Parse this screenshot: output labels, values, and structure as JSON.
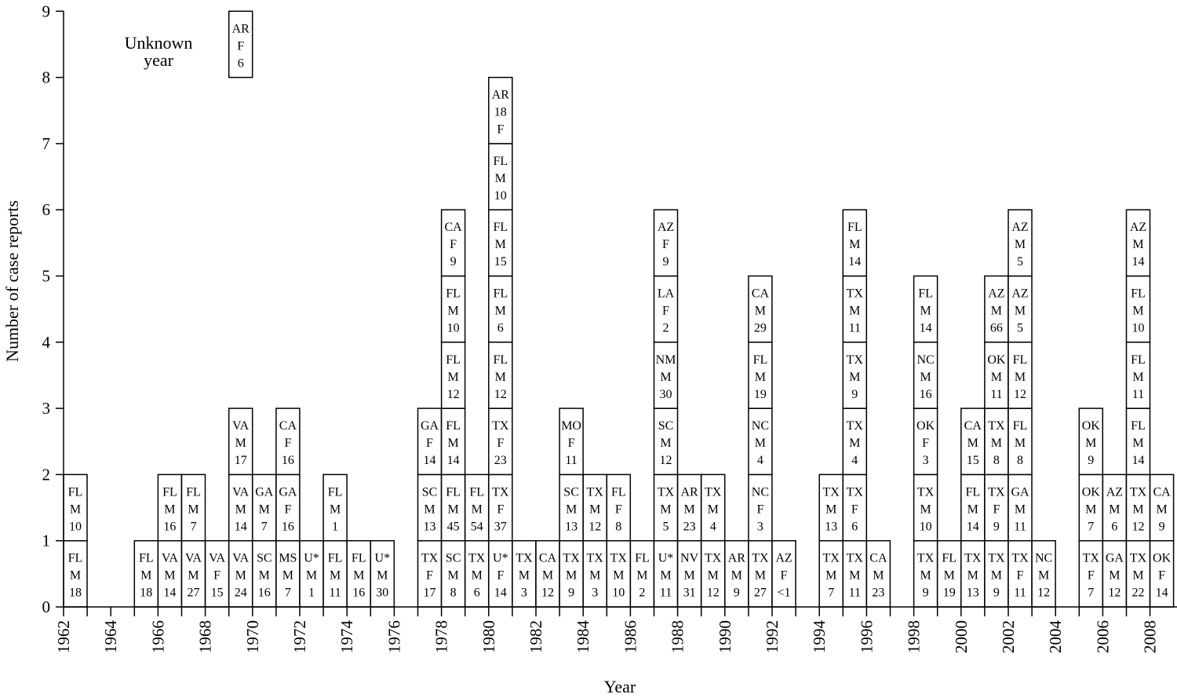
{
  "chart_data": {
    "type": "bar",
    "subtype": "stacked-case-boxes",
    "xlabel": "Year",
    "ylabel": "Number of case reports",
    "ylim": [
      0,
      9
    ],
    "yticks": [
      0,
      1,
      2,
      3,
      4,
      5,
      6,
      7,
      8,
      9
    ],
    "xlim": [
      1962,
      2008
    ],
    "xticks": [
      1962,
      1964,
      1966,
      1968,
      1970,
      1972,
      1974,
      1976,
      1978,
      1980,
      1982,
      1984,
      1986,
      1988,
      1990,
      1992,
      1994,
      1996,
      1998,
      2000,
      2002,
      2004,
      2006,
      2008
    ],
    "grid": false,
    "unknown_year": {
      "label": [
        "Unknown",
        "year"
      ],
      "cases": [
        [
          "AR",
          "F",
          "6"
        ]
      ]
    },
    "counts_by_year": [
      {
        "year": 1962,
        "count": 2
      },
      {
        "year": 1965,
        "count": 1
      },
      {
        "year": 1966,
        "count": 2
      },
      {
        "year": 1967,
        "count": 2
      },
      {
        "year": 1968,
        "count": 1
      },
      {
        "year": 1969,
        "count": 3
      },
      {
        "year": 1970,
        "count": 2
      },
      {
        "year": 1971,
        "count": 3
      },
      {
        "year": 1972,
        "count": 1
      },
      {
        "year": 1973,
        "count": 2
      },
      {
        "year": 1974,
        "count": 1
      },
      {
        "year": 1975,
        "count": 1
      },
      {
        "year": 1977,
        "count": 3
      },
      {
        "year": 1978,
        "count": 6
      },
      {
        "year": 1979,
        "count": 2
      },
      {
        "year": 1980,
        "count": 8
      },
      {
        "year": 1981,
        "count": 1
      },
      {
        "year": 1982,
        "count": 1
      },
      {
        "year": 1983,
        "count": 3
      },
      {
        "year": 1984,
        "count": 2
      },
      {
        "year": 1985,
        "count": 2
      },
      {
        "year": 1986,
        "count": 1
      },
      {
        "year": 1987,
        "count": 6
      },
      {
        "year": 1988,
        "count": 2
      },
      {
        "year": 1989,
        "count": 2
      },
      {
        "year": 1990,
        "count": 1
      },
      {
        "year": 1991,
        "count": 5
      },
      {
        "year": 1992,
        "count": 1
      },
      {
        "year": 1994,
        "count": 2
      },
      {
        "year": 1995,
        "count": 6
      },
      {
        "year": 1996,
        "count": 1
      },
      {
        "year": 1998,
        "count": 5
      },
      {
        "year": 1999,
        "count": 1
      },
      {
        "year": 2000,
        "count": 3
      },
      {
        "year": 2001,
        "count": 5
      },
      {
        "year": 2002,
        "count": 6
      },
      {
        "year": 2003,
        "count": 1
      },
      {
        "year": 2005,
        "count": 3
      },
      {
        "year": 2006,
        "count": 2
      },
      {
        "year": 2007,
        "count": 6
      },
      {
        "year": 2008,
        "count": 2
      }
    ],
    "columns": [
      {
        "year": 1962,
        "cases": [
          [
            "FL",
            "M",
            "18"
          ],
          [
            "FL",
            "M",
            "10"
          ]
        ]
      },
      {
        "year": 1965,
        "cases": [
          [
            "FL",
            "M",
            "18"
          ]
        ]
      },
      {
        "year": 1966,
        "cases": [
          [
            "VA",
            "M",
            "14"
          ],
          [
            "FL",
            "M",
            "16"
          ]
        ]
      },
      {
        "year": 1967,
        "cases": [
          [
            "VA",
            "M",
            "27"
          ],
          [
            "FL",
            "M",
            "7"
          ]
        ]
      },
      {
        "year": 1968,
        "cases": [
          [
            "VA",
            "F",
            "15"
          ]
        ]
      },
      {
        "year": 1969,
        "cases": [
          [
            "VA",
            "M",
            "24"
          ],
          [
            "VA",
            "M",
            "14"
          ],
          [
            "VA",
            "M",
            "17"
          ]
        ]
      },
      {
        "year": 1970,
        "cases": [
          [
            "SC",
            "M",
            "16"
          ],
          [
            "GA",
            "M",
            "7"
          ]
        ]
      },
      {
        "year": 1971,
        "cases": [
          [
            "MS",
            "M",
            "7"
          ],
          [
            "GA",
            "F",
            "16"
          ],
          [
            "CA",
            "F",
            "16"
          ]
        ]
      },
      {
        "year": 1972,
        "cases": [
          [
            "U*",
            "M",
            "1"
          ]
        ]
      },
      {
        "year": 1973,
        "cases": [
          [
            "FL",
            "M",
            "11"
          ],
          [
            "FL",
            "M",
            "1"
          ]
        ]
      },
      {
        "year": 1974,
        "cases": [
          [
            "FL",
            "M",
            "16"
          ]
        ]
      },
      {
        "year": 1975,
        "cases": [
          [
            "U*",
            "M",
            "30"
          ]
        ]
      },
      {
        "year": 1977,
        "cases": [
          [
            "TX",
            "F",
            "17"
          ],
          [
            "SC",
            "M",
            "13"
          ],
          [
            "GA",
            "F",
            "14"
          ]
        ]
      },
      {
        "year": 1978,
        "cases": [
          [
            "SC",
            "M",
            "8"
          ],
          [
            "FL",
            "M",
            "45"
          ],
          [
            "FL",
            "M",
            "14"
          ],
          [
            "FL",
            "M",
            "12"
          ],
          [
            "FL",
            "M",
            "10"
          ],
          [
            "CA",
            "F",
            "9"
          ]
        ]
      },
      {
        "year": 1979,
        "cases": [
          [
            "TX",
            "M",
            "6"
          ],
          [
            "FL",
            "M",
            "54"
          ]
        ]
      },
      {
        "year": 1980,
        "cases": [
          [
            "U*",
            "F",
            "14"
          ],
          [
            "TX",
            "F",
            "37"
          ],
          [
            "TX",
            "F",
            "23"
          ],
          [
            "FL",
            "M",
            "12"
          ],
          [
            "FL",
            "M",
            "6"
          ],
          [
            "FL",
            "M",
            "15"
          ],
          [
            "FL",
            "M",
            "10"
          ],
          [
            "AR",
            "18",
            "F"
          ]
        ]
      },
      {
        "year": 1981,
        "cases": [
          [
            "TX",
            "M",
            "3"
          ]
        ]
      },
      {
        "year": 1982,
        "cases": [
          [
            "CA",
            "M",
            "12"
          ]
        ]
      },
      {
        "year": 1983,
        "cases": [
          [
            "TX",
            "M",
            "9"
          ],
          [
            "SC",
            "M",
            "13"
          ],
          [
            "MO",
            "F",
            "11"
          ]
        ]
      },
      {
        "year": 1984,
        "cases": [
          [
            "TX",
            "M",
            "3"
          ],
          [
            "TX",
            "M",
            "12"
          ]
        ]
      },
      {
        "year": 1985,
        "cases": [
          [
            "TX",
            "M",
            "10"
          ],
          [
            "FL",
            "F",
            "8"
          ]
        ]
      },
      {
        "year": 1986,
        "cases": [
          [
            "FL",
            "M",
            "2"
          ]
        ]
      },
      {
        "year": 1987,
        "cases": [
          [
            "U*",
            "M",
            "11"
          ],
          [
            "TX",
            "M",
            "5"
          ],
          [
            "SC",
            "M",
            "12"
          ],
          [
            "NM",
            "M",
            "30"
          ],
          [
            "LA",
            "F",
            "2"
          ],
          [
            "AZ",
            "F",
            "9"
          ]
        ]
      },
      {
        "year": 1988,
        "cases": [
          [
            "NV",
            "M",
            "31"
          ],
          [
            "AR",
            "M",
            "23"
          ]
        ]
      },
      {
        "year": 1989,
        "cases": [
          [
            "TX",
            "M",
            "12"
          ],
          [
            "TX",
            "M",
            "4"
          ]
        ]
      },
      {
        "year": 1990,
        "cases": [
          [
            "AR",
            "M",
            "9"
          ]
        ]
      },
      {
        "year": 1991,
        "cases": [
          [
            "TX",
            "M",
            "27"
          ],
          [
            "NC",
            "F",
            "3"
          ],
          [
            "NC",
            "M",
            "4"
          ],
          [
            "FL",
            "M",
            "19"
          ],
          [
            "CA",
            "M",
            "29"
          ]
        ]
      },
      {
        "year": 1992,
        "cases": [
          [
            "AZ",
            "F",
            "<1"
          ]
        ]
      },
      {
        "year": 1994,
        "cases": [
          [
            "TX",
            "M",
            "7"
          ],
          [
            "TX",
            "M",
            "13"
          ]
        ]
      },
      {
        "year": 1995,
        "cases": [
          [
            "TX",
            "M",
            "11"
          ],
          [
            "TX",
            "F",
            "6"
          ],
          [
            "TX",
            "M",
            "4"
          ],
          [
            "TX",
            "M",
            "9"
          ],
          [
            "TX",
            "M",
            "11"
          ],
          [
            "FL",
            "M",
            "14"
          ]
        ]
      },
      {
        "year": 1996,
        "cases": [
          [
            "CA",
            "M",
            "23"
          ]
        ]
      },
      {
        "year": 1998,
        "cases": [
          [
            "TX",
            "M",
            "9"
          ],
          [
            "TX",
            "M",
            "10"
          ],
          [
            "OK",
            "F",
            "3"
          ],
          [
            "NC",
            "M",
            "16"
          ],
          [
            "FL",
            "M",
            "14"
          ]
        ]
      },
      {
        "year": 1999,
        "cases": [
          [
            "FL",
            "M",
            "19"
          ]
        ]
      },
      {
        "year": 2000,
        "cases": [
          [
            "TX",
            "M",
            "13"
          ],
          [
            "FL",
            "M",
            "14"
          ],
          [
            "CA",
            "M",
            "15"
          ]
        ]
      },
      {
        "year": 2001,
        "cases": [
          [
            "TX",
            "M",
            "9"
          ],
          [
            "TX",
            "F",
            "9"
          ],
          [
            "TX",
            "M",
            "8"
          ],
          [
            "OK",
            "M",
            "11"
          ],
          [
            "AZ",
            "M",
            "66"
          ]
        ]
      },
      {
        "year": 2002,
        "cases": [
          [
            "TX",
            "F",
            "11"
          ],
          [
            "GA",
            "M",
            "11"
          ],
          [
            "FL",
            "M",
            "8"
          ],
          [
            "FL",
            "M",
            "12"
          ],
          [
            "AZ",
            "M",
            "5"
          ],
          [
            "AZ",
            "M",
            "5"
          ]
        ]
      },
      {
        "year": 2003,
        "cases": [
          [
            "NC",
            "M",
            "12"
          ]
        ]
      },
      {
        "year": 2005,
        "cases": [
          [
            "TX",
            "F",
            "7"
          ],
          [
            "OK",
            "M",
            "7"
          ],
          [
            "OK",
            "M",
            "9"
          ]
        ]
      },
      {
        "year": 2006,
        "cases": [
          [
            "GA",
            "M",
            "12"
          ],
          [
            "AZ",
            "M",
            "6"
          ]
        ]
      },
      {
        "year": 2007,
        "cases": [
          [
            "TX",
            "M",
            "22"
          ],
          [
            "TX",
            "M",
            "12"
          ],
          [
            "FL",
            "M",
            "14"
          ],
          [
            "FL",
            "M",
            "11"
          ],
          [
            "FL",
            "M",
            "10"
          ],
          [
            "AZ",
            "M",
            "14"
          ]
        ]
      },
      {
        "year": 2008,
        "cases": [
          [
            "OK",
            "F",
            "14"
          ],
          [
            "CA",
            "M",
            "9"
          ]
        ]
      }
    ]
  }
}
